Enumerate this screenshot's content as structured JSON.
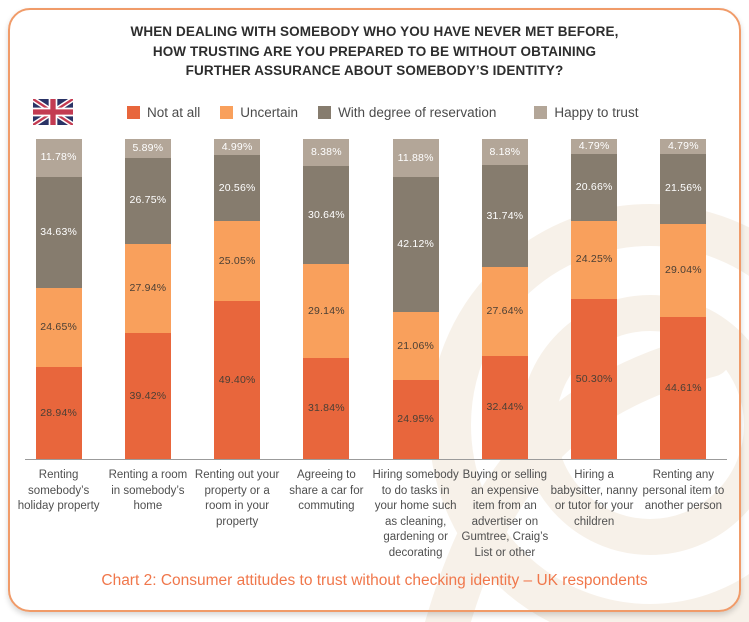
{
  "header": {
    "title_lines": [
      "WHEN DEALING WITH SOMEBODY WHO YOU HAVE NEVER MET BEFORE,",
      "HOW TRUSTING ARE YOU PREPARED TO BE WITHOUT OBTAINING",
      "FURTHER ASSURANCE ABOUT SOMEBODY’S IDENTITY?"
    ],
    "flag_icon": "uk-flag"
  },
  "colors": {
    "card_border": "#f09b69",
    "caption_text": "#f0774b",
    "axis_line": "#9b9b9b",
    "watermark": "#f7f1e9"
  },
  "chart_data": {
    "type": "bar",
    "stacked": true,
    "percent_total": 100,
    "unit": "%",
    "grid": false,
    "legend_position": "top",
    "ylim": [
      0,
      100
    ],
    "value_label_decimals": 2,
    "categories": [
      "Renting somebody’s holiday property",
      "Renting a room in somebody’s home",
      "Renting out your property or a room in your property",
      "Agreeing to share a car for commuting",
      "Hiring somebody to do tasks in your home such as cleaning, gardening or decorating",
      "Buying or selling an expensive item from an advertiser on Gumtree, Craig’s List or other",
      "Hiring a babysitter, nanny or tutor for your children",
      "Renting any personal item to another person"
    ],
    "series": [
      {
        "name": "Not at all",
        "color": "#e8663c",
        "label_color": "#4a3f35",
        "values": [
          28.94,
          39.42,
          49.4,
          31.84,
          24.95,
          32.44,
          50.3,
          44.61
        ]
      },
      {
        "name": "Uncertain",
        "color": "#f9a05c",
        "label_color": "#4a3f35",
        "values": [
          24.65,
          27.94,
          25.05,
          29.14,
          21.06,
          27.64,
          24.25,
          29.04
        ]
      },
      {
        "name": "With degree of reservation",
        "color": "#867c6e",
        "label_color": "#ffffff",
        "values": [
          34.63,
          26.75,
          20.56,
          30.64,
          42.12,
          31.74,
          20.66,
          21.56
        ]
      },
      {
        "name": "Happy to trust",
        "color": "#b3a698",
        "label_color": "#ffffff",
        "values": [
          11.78,
          5.89,
          4.99,
          8.38,
          11.88,
          8.18,
          4.79,
          4.79
        ]
      }
    ]
  },
  "footer": {
    "caption": "Chart 2: Consumer attitudes to trust without checking identity – UK respondents"
  }
}
